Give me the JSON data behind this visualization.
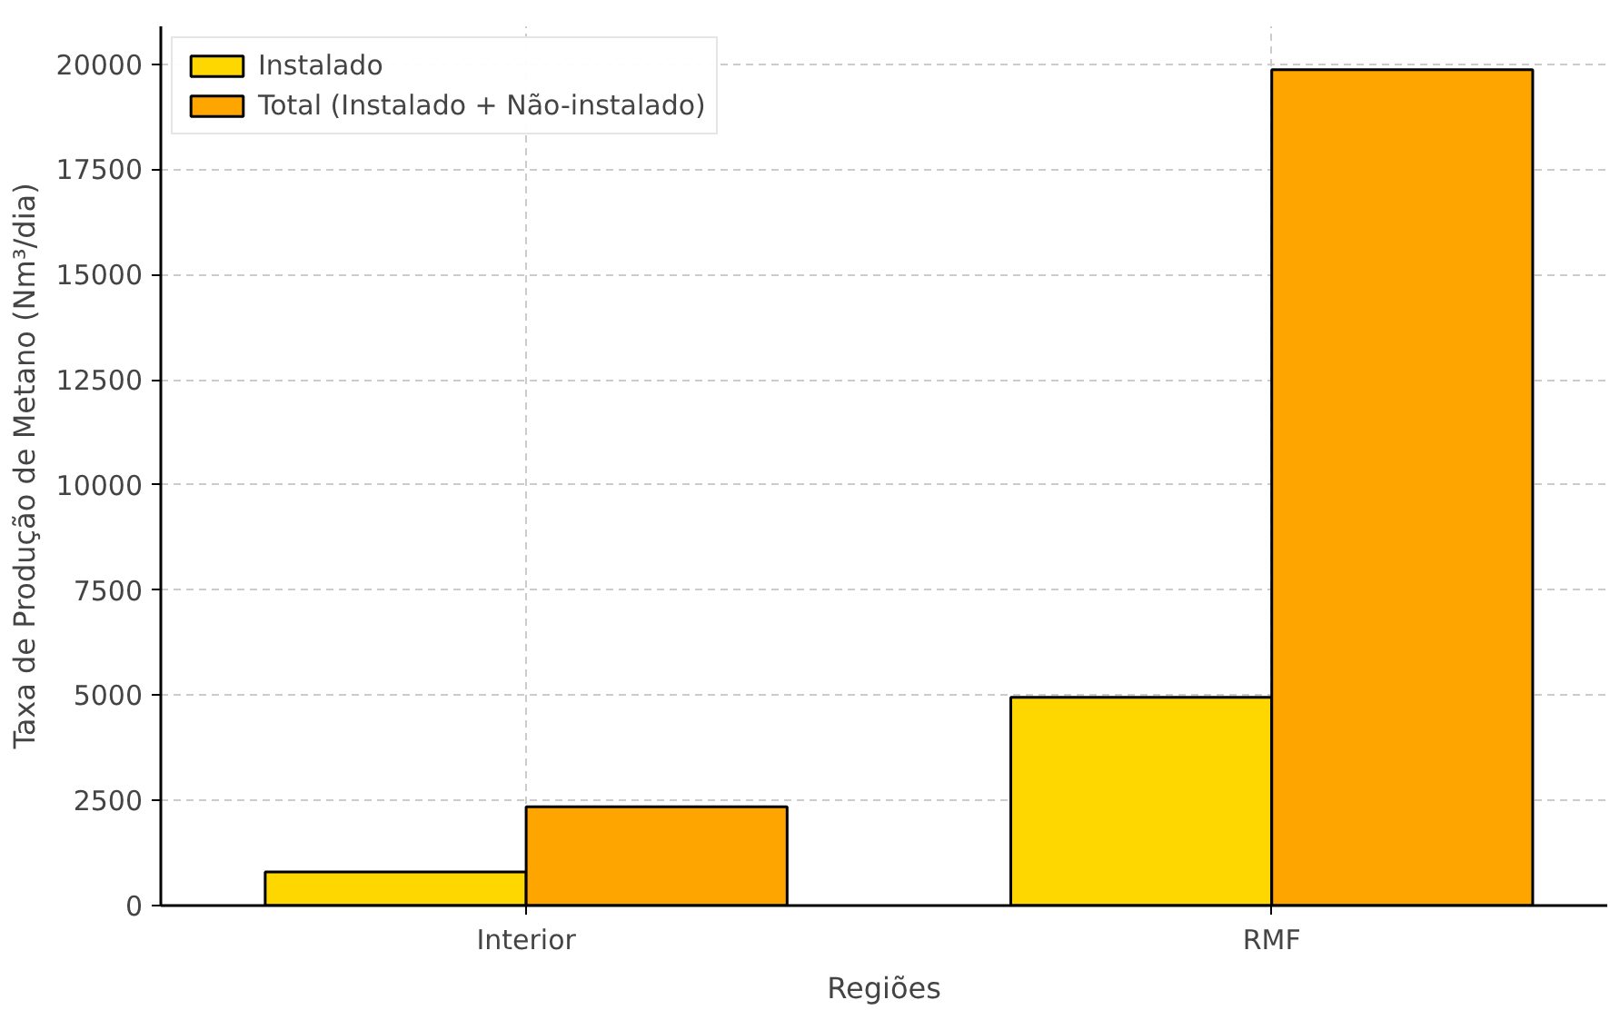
{
  "chart_data": {
    "type": "bar",
    "xlabel": "Regiões",
    "ylabel": "Taxa de Produção de Metano (Nm³/dia)",
    "categories": [
      "Interior",
      "RMF"
    ],
    "series": [
      {
        "name": "Instalado",
        "color": "#ffd700",
        "values": [
          800,
          4950
        ]
      },
      {
        "name": "Total (Instalado + Não-instalado)",
        "color": "#ffa500",
        "values": [
          2350,
          19870
        ]
      }
    ],
    "ylim": [
      0,
      20900
    ],
    "yticks": [
      0,
      2500,
      5000,
      7500,
      10000,
      12500,
      15000,
      17500,
      20000
    ],
    "grid": true,
    "legend": "top left"
  }
}
